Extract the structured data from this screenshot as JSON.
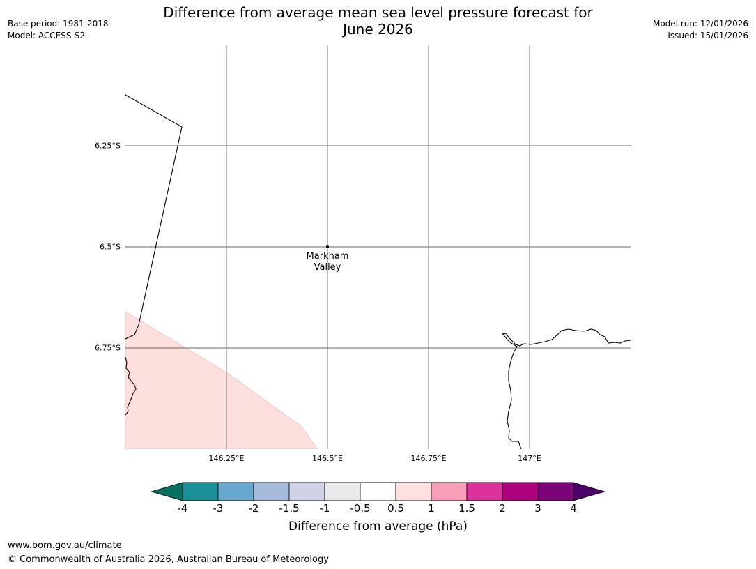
{
  "header": {
    "title_line1": "Difference from average mean sea level pressure forecast for",
    "title_line2": "June 2026",
    "base_period": "Base period: 1981-2018",
    "model": "Model: ACCESS-S2",
    "model_run": "Model run: 12/01/2026",
    "issued": "Issued: 15/01/2026"
  },
  "map": {
    "lat_labels": [
      "6.25°S",
      "6.5°S",
      "6.75°S"
    ],
    "lon_labels": [
      "146.25°E",
      "146.5°E",
      "146.75°E",
      "147°E"
    ],
    "place": {
      "name": "Markham\nValley",
      "lon": 146.5,
      "lat": -6.5
    },
    "shaded_category": "0.5 to 1",
    "shaded_color": "#fcdedd"
  },
  "colorbar": {
    "label": "Difference from average (hPa)",
    "ticks": [
      "-4",
      "-3",
      "-2",
      "-1.5",
      "-1",
      "-0.5",
      "0.5",
      "1",
      "1.5",
      "2",
      "3",
      "4"
    ],
    "colors": [
      "#1a9096",
      "#66a8d0",
      "#a7bbdb",
      "#d1d1e7",
      "#ebe9ec",
      "#ffffff",
      "#fde0df",
      "#f89fb8",
      "#dc329c",
      "#ad017e",
      "#7b0278"
    ],
    "low_extend_color": "#08705f",
    "high_extend_color": "#4a0168"
  },
  "footer": {
    "website": "www.bom.gov.au/climate",
    "copyright": "© Commonwealth of Australia 2026, Australian Bureau of Meteorology"
  }
}
